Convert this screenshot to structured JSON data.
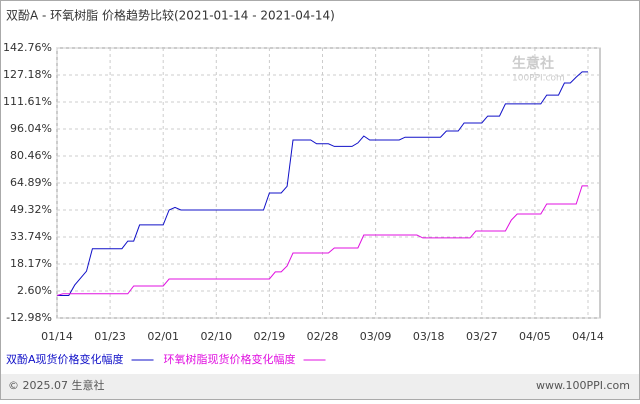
{
  "chart_data": {
    "type": "line",
    "title": "双酚A - 环氧树脂 价格趋势比较(2021-01-14 - 2021-04-14)",
    "xlim": [
      "01/14",
      "04/14"
    ],
    "xticks": [
      "01/14",
      "01/23",
      "02/01",
      "02/10",
      "02/19",
      "02/28",
      "03/09",
      "03/18",
      "03/27",
      "04/05",
      "04/14"
    ],
    "ylim": [
      -12.98,
      142.76
    ],
    "yticks": [
      {
        "value": -12.98,
        "label": "-12.98%"
      },
      {
        "value": 2.6,
        "label": "2.60%"
      },
      {
        "value": 18.17,
        "label": "18.17%"
      },
      {
        "value": 33.74,
        "label": "33.74%"
      },
      {
        "value": 49.32,
        "label": "49.32%"
      },
      {
        "value": 64.89,
        "label": "64.89%"
      },
      {
        "value": 80.46,
        "label": "80.46%"
      },
      {
        "value": 96.04,
        "label": "96.04%"
      },
      {
        "value": 111.61,
        "label": "111.61%"
      },
      {
        "value": 127.18,
        "label": "127.18%"
      },
      {
        "value": 142.76,
        "label": "142.76%"
      }
    ],
    "grid": true,
    "series": [
      {
        "name": "双酚A现货价格变化幅度",
        "color": "#1010c8",
        "x": [
          "01/14",
          "01/16",
          "01/17",
          "01/19",
          "01/20",
          "01/25",
          "01/26",
          "01/27",
          "01/28",
          "02/01",
          "02/02",
          "02/03",
          "02/04",
          "02/18",
          "02/19",
          "02/21",
          "02/22",
          "02/23",
          "02/26",
          "02/27",
          "03/01",
          "03/02",
          "03/05",
          "03/06",
          "03/07",
          "03/08",
          "03/13",
          "03/14",
          "03/20",
          "03/21",
          "03/23",
          "03/24",
          "03/27",
          "03/28",
          "03/30",
          "03/31",
          "04/06",
          "04/07",
          "04/09",
          "04/10",
          "04/11",
          "04/12",
          "04/13",
          "04/14"
        ],
        "values": [
          0,
          0,
          6,
          14,
          27,
          27,
          31.4,
          31.4,
          40.7,
          40.7,
          49.3,
          50.8,
          49.3,
          49.3,
          59.1,
          59.1,
          63,
          89.7,
          89.7,
          87.5,
          87.5,
          86,
          86,
          88,
          92,
          89.7,
          89.7,
          91.3,
          91.3,
          94.9,
          94.9,
          99.5,
          99.5,
          103.5,
          103.5,
          110.5,
          110.5,
          115.6,
          115.6,
          122.6,
          122.6,
          126,
          129,
          129
        ]
      },
      {
        "name": "环氧树脂现货价格变化幅度",
        "color": "#e010e0",
        "x": [
          "01/14",
          "01/15",
          "01/26",
          "01/27",
          "02/01",
          "02/02",
          "02/19",
          "02/20",
          "02/21",
          "02/22",
          "02/23",
          "03/01",
          "03/02",
          "03/06",
          "03/07",
          "03/16",
          "03/17",
          "03/25",
          "03/26",
          "03/31",
          "04/01",
          "04/02",
          "04/06",
          "04/07",
          "04/12",
          "04/13",
          "04/14"
        ],
        "values": [
          0,
          1,
          1,
          5.5,
          5.5,
          9.5,
          9.5,
          13.6,
          13.6,
          17,
          24.5,
          24.5,
          27.4,
          27.4,
          34.9,
          34.9,
          33.2,
          33.2,
          37.2,
          37.2,
          43.5,
          47,
          47,
          52.8,
          52.8,
          63.2,
          63.2
        ]
      }
    ],
    "watermark": [
      "生意社",
      "100PPI.com"
    ],
    "footer": [
      "© 2025.07 生意社",
      "www.100PPI.com"
    ]
  }
}
